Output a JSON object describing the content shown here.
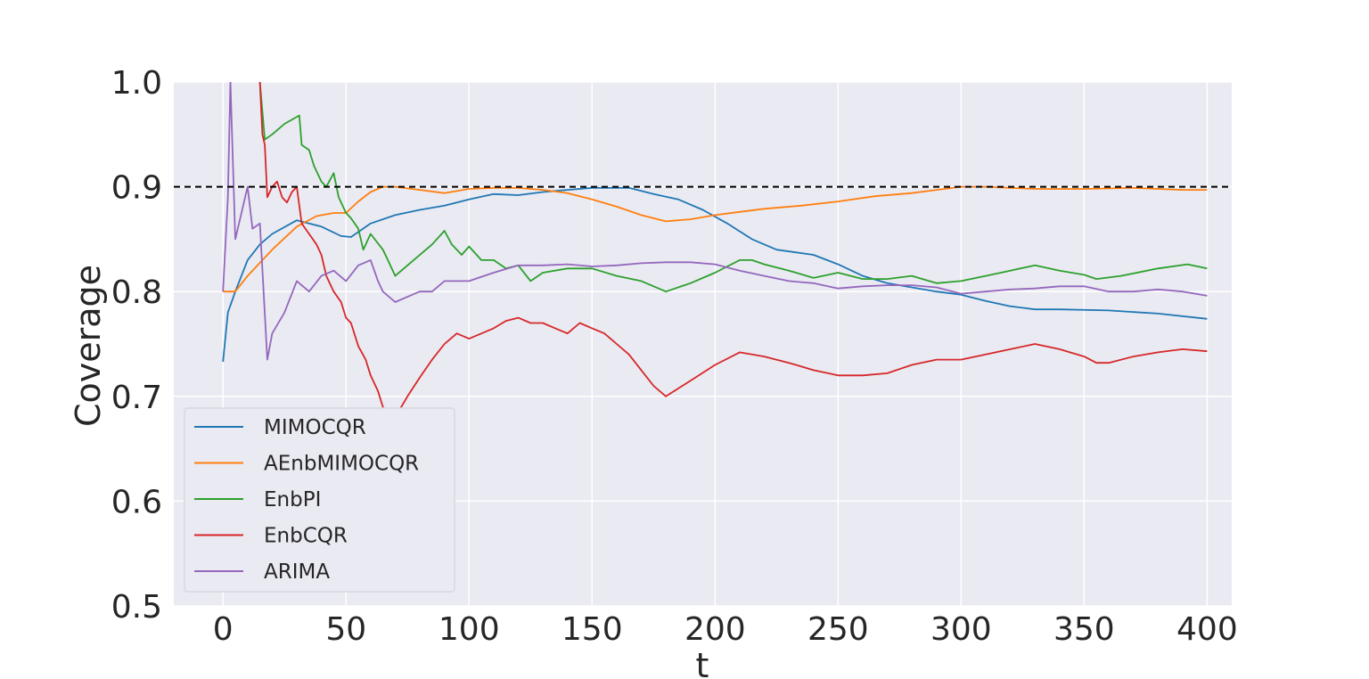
{
  "chart_data": {
    "type": "line",
    "xlabel": "t",
    "ylabel": "Coverage",
    "xlim": [
      -20,
      410
    ],
    "ylim": [
      0.5,
      1.0
    ],
    "xticks": [
      0,
      50,
      100,
      150,
      200,
      250,
      300,
      350,
      400
    ],
    "yticks": [
      0.5,
      0.6,
      0.7,
      0.8,
      0.9,
      1.0
    ],
    "xtick_labels": [
      "0",
      "50",
      "100",
      "150",
      "200",
      "250",
      "300",
      "350",
      "400"
    ],
    "ytick_labels": [
      "0.5",
      "0.6",
      "0.7",
      "0.8",
      "0.9",
      "1.0"
    ],
    "grid": true,
    "legend_position": "lower-left",
    "reference_line": {
      "y": 0.9,
      "style": "dashed",
      "color": "#000000"
    },
    "series": [
      {
        "name": "MIMOCQR",
        "color": "#1f77b4",
        "points": [
          [
            0,
            0.733
          ],
          [
            2,
            0.78
          ],
          [
            5,
            0.8
          ],
          [
            10,
            0.83
          ],
          [
            15,
            0.845
          ],
          [
            20,
            0.855
          ],
          [
            30,
            0.868
          ],
          [
            40,
            0.862
          ],
          [
            48,
            0.853
          ],
          [
            52,
            0.852
          ],
          [
            60,
            0.865
          ],
          [
            70,
            0.873
          ],
          [
            80,
            0.878
          ],
          [
            90,
            0.882
          ],
          [
            100,
            0.888
          ],
          [
            110,
            0.893
          ],
          [
            120,
            0.892
          ],
          [
            130,
            0.895
          ],
          [
            140,
            0.897
          ],
          [
            150,
            0.899
          ],
          [
            165,
            0.899
          ],
          [
            175,
            0.893
          ],
          [
            185,
            0.888
          ],
          [
            195,
            0.878
          ],
          [
            205,
            0.865
          ],
          [
            215,
            0.85
          ],
          [
            225,
            0.84
          ],
          [
            240,
            0.835
          ],
          [
            250,
            0.826
          ],
          [
            260,
            0.815
          ],
          [
            270,
            0.808
          ],
          [
            280,
            0.804
          ],
          [
            290,
            0.8
          ],
          [
            300,
            0.797
          ],
          [
            310,
            0.791
          ],
          [
            320,
            0.786
          ],
          [
            330,
            0.783
          ],
          [
            340,
            0.783
          ],
          [
            360,
            0.782
          ],
          [
            380,
            0.779
          ],
          [
            400,
            0.774
          ]
        ]
      },
      {
        "name": "AEnbMIMOCQR",
        "color": "#ff7f0e",
        "points": [
          [
            0,
            0.8
          ],
          [
            5,
            0.8
          ],
          [
            10,
            0.815
          ],
          [
            20,
            0.84
          ],
          [
            30,
            0.862
          ],
          [
            38,
            0.872
          ],
          [
            45,
            0.875
          ],
          [
            50,
            0.875
          ],
          [
            55,
            0.886
          ],
          [
            60,
            0.895
          ],
          [
            65,
            0.9
          ],
          [
            70,
            0.9
          ],
          [
            80,
            0.897
          ],
          [
            90,
            0.894
          ],
          [
            100,
            0.898
          ],
          [
            110,
            0.899
          ],
          [
            120,
            0.899
          ],
          [
            130,
            0.897
          ],
          [
            140,
            0.894
          ],
          [
            150,
            0.888
          ],
          [
            160,
            0.881
          ],
          [
            170,
            0.873
          ],
          [
            180,
            0.867
          ],
          [
            190,
            0.869
          ],
          [
            200,
            0.873
          ],
          [
            210,
            0.876
          ],
          [
            220,
            0.879
          ],
          [
            235,
            0.882
          ],
          [
            250,
            0.886
          ],
          [
            265,
            0.891
          ],
          [
            280,
            0.894
          ],
          [
            290,
            0.897
          ],
          [
            300,
            0.9
          ],
          [
            310,
            0.9
          ],
          [
            320,
            0.899
          ],
          [
            330,
            0.898
          ],
          [
            350,
            0.898
          ],
          [
            370,
            0.899
          ],
          [
            390,
            0.897
          ],
          [
            400,
            0.897
          ]
        ]
      },
      {
        "name": "EnbPI",
        "color": "#2ca02c",
        "points": [
          [
            15,
            1.0
          ],
          [
            17,
            0.945
          ],
          [
            20,
            0.95
          ],
          [
            25,
            0.96
          ],
          [
            31,
            0.968
          ],
          [
            32,
            0.94
          ],
          [
            35,
            0.935
          ],
          [
            37,
            0.92
          ],
          [
            40,
            0.905
          ],
          [
            42,
            0.9
          ],
          [
            45,
            0.913
          ],
          [
            47,
            0.89
          ],
          [
            50,
            0.875
          ],
          [
            52,
            0.87
          ],
          [
            55,
            0.86
          ],
          [
            57,
            0.84
          ],
          [
            60,
            0.855
          ],
          [
            65,
            0.84
          ],
          [
            67,
            0.83
          ],
          [
            70,
            0.815
          ],
          [
            75,
            0.825
          ],
          [
            85,
            0.845
          ],
          [
            90,
            0.858
          ],
          [
            93,
            0.845
          ],
          [
            97,
            0.835
          ],
          [
            100,
            0.843
          ],
          [
            105,
            0.83
          ],
          [
            110,
            0.83
          ],
          [
            115,
            0.822
          ],
          [
            120,
            0.825
          ],
          [
            125,
            0.81
          ],
          [
            130,
            0.818
          ],
          [
            140,
            0.822
          ],
          [
            150,
            0.822
          ],
          [
            160,
            0.815
          ],
          [
            170,
            0.81
          ],
          [
            180,
            0.8
          ],
          [
            190,
            0.808
          ],
          [
            200,
            0.818
          ],
          [
            210,
            0.83
          ],
          [
            215,
            0.83
          ],
          [
            220,
            0.826
          ],
          [
            230,
            0.82
          ],
          [
            240,
            0.813
          ],
          [
            250,
            0.818
          ],
          [
            260,
            0.812
          ],
          [
            270,
            0.812
          ],
          [
            280,
            0.815
          ],
          [
            290,
            0.808
          ],
          [
            300,
            0.81
          ],
          [
            310,
            0.815
          ],
          [
            320,
            0.82
          ],
          [
            330,
            0.825
          ],
          [
            340,
            0.82
          ],
          [
            350,
            0.816
          ],
          [
            355,
            0.812
          ],
          [
            365,
            0.815
          ],
          [
            380,
            0.822
          ],
          [
            392,
            0.826
          ],
          [
            400,
            0.822
          ]
        ]
      },
      {
        "name": "EnbCQR",
        "color": "#d62728",
        "points": [
          [
            15,
            1.0
          ],
          [
            16,
            0.95
          ],
          [
            17,
            0.94
          ],
          [
            18,
            0.89
          ],
          [
            20,
            0.9
          ],
          [
            22,
            0.905
          ],
          [
            24,
            0.89
          ],
          [
            26,
            0.885
          ],
          [
            28,
            0.895
          ],
          [
            30,
            0.9
          ],
          [
            32,
            0.865
          ],
          [
            35,
            0.855
          ],
          [
            38,
            0.845
          ],
          [
            40,
            0.835
          ],
          [
            42,
            0.815
          ],
          [
            45,
            0.8
          ],
          [
            48,
            0.79
          ],
          [
            50,
            0.775
          ],
          [
            52,
            0.77
          ],
          [
            55,
            0.748
          ],
          [
            58,
            0.735
          ],
          [
            60,
            0.72
          ],
          [
            63,
            0.705
          ],
          [
            65,
            0.69
          ],
          [
            68,
            0.675
          ],
          [
            70,
            0.68
          ],
          [
            75,
            0.7
          ],
          [
            80,
            0.718
          ],
          [
            85,
            0.735
          ],
          [
            90,
            0.75
          ],
          [
            95,
            0.76
          ],
          [
            100,
            0.755
          ],
          [
            110,
            0.765
          ],
          [
            115,
            0.772
          ],
          [
            120,
            0.775
          ],
          [
            125,
            0.77
          ],
          [
            130,
            0.77
          ],
          [
            135,
            0.765
          ],
          [
            140,
            0.76
          ],
          [
            145,
            0.77
          ],
          [
            150,
            0.765
          ],
          [
            155,
            0.76
          ],
          [
            160,
            0.75
          ],
          [
            165,
            0.74
          ],
          [
            170,
            0.725
          ],
          [
            175,
            0.71
          ],
          [
            180,
            0.7
          ],
          [
            190,
            0.715
          ],
          [
            200,
            0.73
          ],
          [
            210,
            0.742
          ],
          [
            215,
            0.74
          ],
          [
            220,
            0.738
          ],
          [
            230,
            0.732
          ],
          [
            240,
            0.725
          ],
          [
            250,
            0.72
          ],
          [
            260,
            0.72
          ],
          [
            270,
            0.722
          ],
          [
            280,
            0.73
          ],
          [
            290,
            0.735
          ],
          [
            300,
            0.735
          ],
          [
            310,
            0.74
          ],
          [
            320,
            0.745
          ],
          [
            330,
            0.75
          ],
          [
            340,
            0.745
          ],
          [
            350,
            0.738
          ],
          [
            355,
            0.732
          ],
          [
            360,
            0.732
          ],
          [
            370,
            0.738
          ],
          [
            380,
            0.742
          ],
          [
            390,
            0.745
          ],
          [
            400,
            0.743
          ]
        ]
      },
      {
        "name": "ARIMA",
        "color": "#9467bd",
        "points": [
          [
            0,
            0.8
          ],
          [
            2,
            0.89
          ],
          [
            3,
            1.0
          ],
          [
            5,
            0.85
          ],
          [
            8,
            0.88
          ],
          [
            10,
            0.9
          ],
          [
            12,
            0.86
          ],
          [
            15,
            0.865
          ],
          [
            18,
            0.735
          ],
          [
            20,
            0.76
          ],
          [
            25,
            0.78
          ],
          [
            30,
            0.81
          ],
          [
            35,
            0.8
          ],
          [
            40,
            0.815
          ],
          [
            45,
            0.82
          ],
          [
            50,
            0.81
          ],
          [
            55,
            0.825
          ],
          [
            60,
            0.83
          ],
          [
            63,
            0.81
          ],
          [
            65,
            0.8
          ],
          [
            70,
            0.79
          ],
          [
            75,
            0.795
          ],
          [
            80,
            0.8
          ],
          [
            85,
            0.8
          ],
          [
            90,
            0.81
          ],
          [
            100,
            0.81
          ],
          [
            110,
            0.818
          ],
          [
            120,
            0.825
          ],
          [
            130,
            0.825
          ],
          [
            140,
            0.826
          ],
          [
            150,
            0.824
          ],
          [
            160,
            0.825
          ],
          [
            170,
            0.827
          ],
          [
            180,
            0.828
          ],
          [
            190,
            0.828
          ],
          [
            200,
            0.826
          ],
          [
            210,
            0.82
          ],
          [
            220,
            0.815
          ],
          [
            230,
            0.81
          ],
          [
            240,
            0.808
          ],
          [
            250,
            0.803
          ],
          [
            260,
            0.805
          ],
          [
            270,
            0.806
          ],
          [
            280,
            0.806
          ],
          [
            290,
            0.804
          ],
          [
            300,
            0.798
          ],
          [
            310,
            0.8
          ],
          [
            320,
            0.802
          ],
          [
            330,
            0.803
          ],
          [
            340,
            0.805
          ],
          [
            350,
            0.805
          ],
          [
            360,
            0.8
          ],
          [
            370,
            0.8
          ],
          [
            380,
            0.802
          ],
          [
            390,
            0.8
          ],
          [
            400,
            0.796
          ]
        ]
      }
    ]
  }
}
